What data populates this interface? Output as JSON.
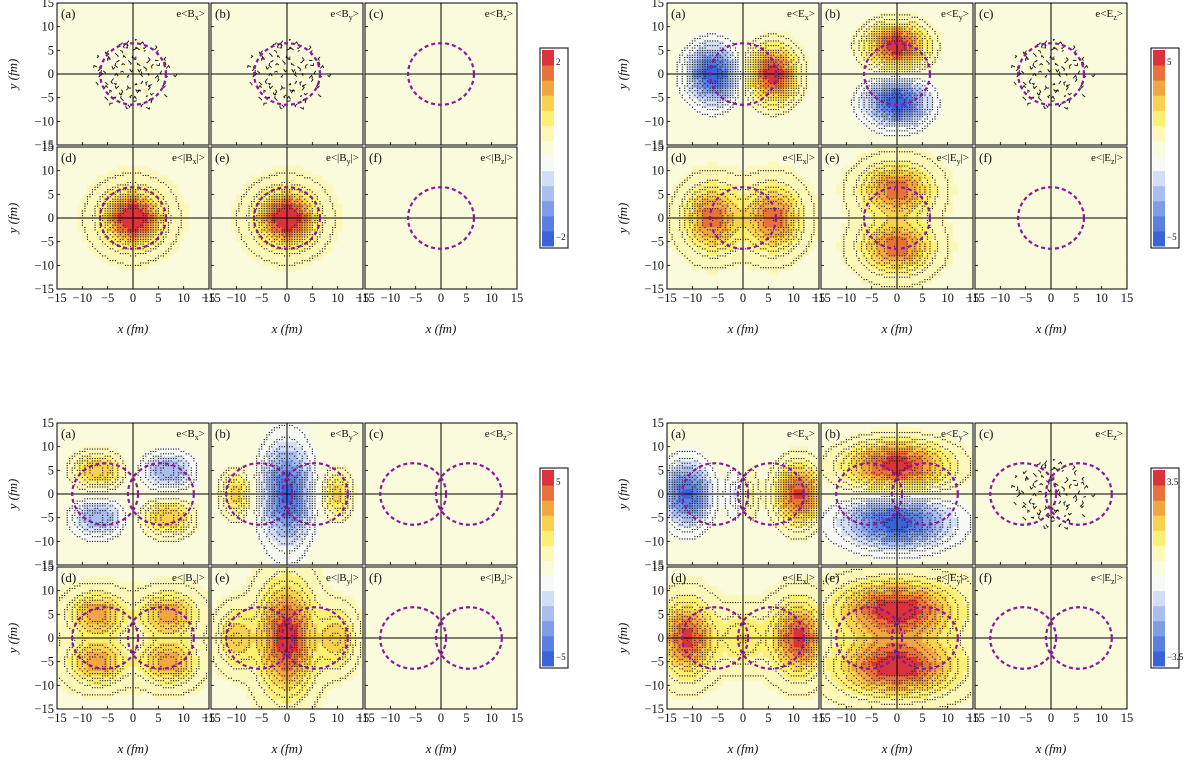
{
  "chart_data": [
    {
      "type": "heatmap",
      "xlabel": "x (fm)",
      "ylabel": "y (fm)",
      "x_ticks": [
        "−15",
        "−10",
        "−5",
        "0",
        "5",
        "10",
        "15"
      ],
      "y_ticks": [
        "15",
        "10",
        "5",
        "0",
        "−5",
        "−10",
        "−15"
      ],
      "xlim": [
        -15,
        15
      ],
      "ylim": [
        -15,
        15
      ],
      "colorbar": {
        "max_label": "2",
        "min_label": "−2",
        "range": [
          -2,
          2
        ]
      },
      "circles": [
        {
          "cx": 0,
          "cy": 0,
          "r": 6.5
        }
      ],
      "panels": [
        {
          "letter": "(a)",
          "label": "e<B",
          "sub": "x",
          "tail": ">",
          "kind": "noise"
        },
        {
          "letter": "(b)",
          "label": "e<B",
          "sub": "y",
          "tail": ">",
          "kind": "noise"
        },
        {
          "letter": "(c)",
          "label": "e<B",
          "sub": "z",
          "tail": ">",
          "kind": "empty"
        },
        {
          "letter": "(d)",
          "label": "e<|B",
          "sub": "x",
          "tail": "|>",
          "kind": "peak"
        },
        {
          "letter": "(e)",
          "label": "e<|B",
          "sub": "y",
          "tail": "|>",
          "kind": "peak"
        },
        {
          "letter": "(f)",
          "label": "e<|B",
          "sub": "z",
          "tail": "|>",
          "kind": "empty"
        }
      ]
    },
    {
      "type": "heatmap",
      "xlabel": "x (fm)",
      "ylabel": "y (fm)",
      "x_ticks": [
        "−15",
        "−10",
        "−5",
        "0",
        "5",
        "10",
        "15"
      ],
      "y_ticks": [
        "15",
        "10",
        "5",
        "0",
        "−5",
        "−10",
        "−15"
      ],
      "xlim": [
        -15,
        15
      ],
      "ylim": [
        -15,
        15
      ],
      "colorbar": {
        "max_label": "5",
        "min_label": "−5",
        "range": [
          -5,
          5
        ]
      },
      "circles": [
        {
          "cx": 0,
          "cy": 0,
          "r": 6.5
        }
      ],
      "panels": [
        {
          "letter": "(a)",
          "label": "e<E",
          "sub": "x",
          "tail": ">",
          "kind": "dipole_x"
        },
        {
          "letter": "(b)",
          "label": "e<E",
          "sub": "y",
          "tail": ">",
          "kind": "dipole_y"
        },
        {
          "letter": "(c)",
          "label": "e<E",
          "sub": "z",
          "tail": ">",
          "kind": "noise"
        },
        {
          "letter": "(d)",
          "label": "e<|E",
          "sub": "x",
          "tail": "|>",
          "kind": "abs_x"
        },
        {
          "letter": "(e)",
          "label": "e<|E",
          "sub": "y",
          "tail": "|>",
          "kind": "abs_y"
        },
        {
          "letter": "(f)",
          "label": "e<|E",
          "sub": "z",
          "tail": "|>",
          "kind": "empty"
        }
      ]
    },
    {
      "type": "heatmap",
      "xlabel": "x (fm)",
      "ylabel": "y (fm)",
      "x_ticks": [
        "−15",
        "−10",
        "−5",
        "0",
        "5",
        "10",
        "15"
      ],
      "y_ticks": [
        "15",
        "10",
        "5",
        "0",
        "−5",
        "−10",
        "−15"
      ],
      "xlim": [
        -15,
        15
      ],
      "ylim": [
        -15,
        15
      ],
      "colorbar": {
        "max_label": "5",
        "min_label": "−5",
        "range": [
          -5,
          5
        ]
      },
      "circles": [
        {
          "cx": -5.5,
          "cy": 0,
          "r": 6.5
        },
        {
          "cx": 5.5,
          "cy": 0,
          "r": 6.5
        }
      ],
      "panels": [
        {
          "letter": "(a)",
          "label": "e<B",
          "sub": "x",
          "tail": ">",
          "kind": "quad"
        },
        {
          "letter": "(b)",
          "label": "e<B",
          "sub": "y",
          "tail": ">",
          "kind": "by_two"
        },
        {
          "letter": "(c)",
          "label": "e<B",
          "sub": "z",
          "tail": ">",
          "kind": "empty"
        },
        {
          "letter": "(d)",
          "label": "e<|B",
          "sub": "x",
          "tail": "|>",
          "kind": "abs_quad"
        },
        {
          "letter": "(e)",
          "label": "e<|B",
          "sub": "y",
          "tail": "|>",
          "kind": "abs_by_two"
        },
        {
          "letter": "(f)",
          "label": "e<|B",
          "sub": "z",
          "tail": "|>",
          "kind": "empty"
        }
      ]
    },
    {
      "type": "heatmap",
      "xlabel": "x (fm)",
      "ylabel": "y (fm)",
      "x_ticks": [
        "−15",
        "−10",
        "−5",
        "0",
        "5",
        "10",
        "15"
      ],
      "y_ticks": [
        "15",
        "10",
        "5",
        "0",
        "−5",
        "−10",
        "−15"
      ],
      "xlim": [
        -15,
        15
      ],
      "ylim": [
        -15,
        15
      ],
      "colorbar": {
        "max_label": "3.5",
        "min_label": "−3.5",
        "range": [
          -3.5,
          3.5
        ]
      },
      "circles": [
        {
          "cx": -5.5,
          "cy": 0,
          "r": 6.5
        },
        {
          "cx": 5.5,
          "cy": 0,
          "r": 6.5
        }
      ],
      "panels": [
        {
          "letter": "(a)",
          "label": "e<E",
          "sub": "x",
          "tail": ">",
          "kind": "ex_two"
        },
        {
          "letter": "(b)",
          "label": "e<E",
          "sub": "y",
          "tail": ">",
          "kind": "ey_two"
        },
        {
          "letter": "(c)",
          "label": "e<E",
          "sub": "z",
          "tail": ">",
          "kind": "noise"
        },
        {
          "letter": "(d)",
          "label": "e<|E",
          "sub": "x",
          "tail": "|>",
          "kind": "abs_ex_two"
        },
        {
          "letter": "(e)",
          "label": "e<|E",
          "sub": "y",
          "tail": "|>",
          "kind": "abs_ey_two"
        },
        {
          "letter": "(f)",
          "label": "e<|E",
          "sub": "z",
          "tail": "|>",
          "kind": "empty"
        }
      ]
    }
  ],
  "colors": {
    "scale": [
      "#3b63d8",
      "#5a7fe0",
      "#7f9ce6",
      "#a9bdee",
      "#d3def6",
      "#f7f9f4",
      "#fafadc",
      "#fdf7b8",
      "#fcef72",
      "#f8d14f",
      "#f2a642",
      "#e8733a",
      "#d9333c"
    ],
    "circle": "#8a1a9b"
  }
}
